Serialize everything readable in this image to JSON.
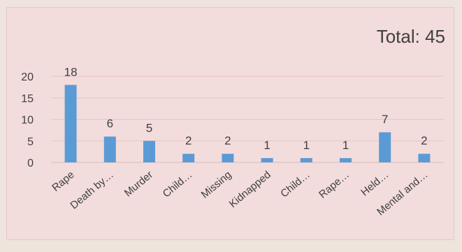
{
  "chart_data": {
    "type": "bar",
    "title": "",
    "annotation": "Total: 45",
    "xlabel": "",
    "ylabel": "",
    "categories": [
      "Rape",
      "Death by…",
      "Murder",
      "Child…",
      "Missing",
      "Kidnapped",
      "Child…",
      "Rape…",
      "Held…",
      "Mental and…"
    ],
    "values": [
      18,
      6,
      5,
      2,
      2,
      1,
      1,
      1,
      7,
      2
    ],
    "ylim": [
      0,
      20
    ],
    "yticks": [
      "0",
      "5",
      "10",
      "15",
      "20"
    ],
    "grid": true,
    "legend": "none",
    "bar_color": "#5b9bd5",
    "grid_color": "#e8c5c5",
    "background_color": "#f3dcdc"
  }
}
